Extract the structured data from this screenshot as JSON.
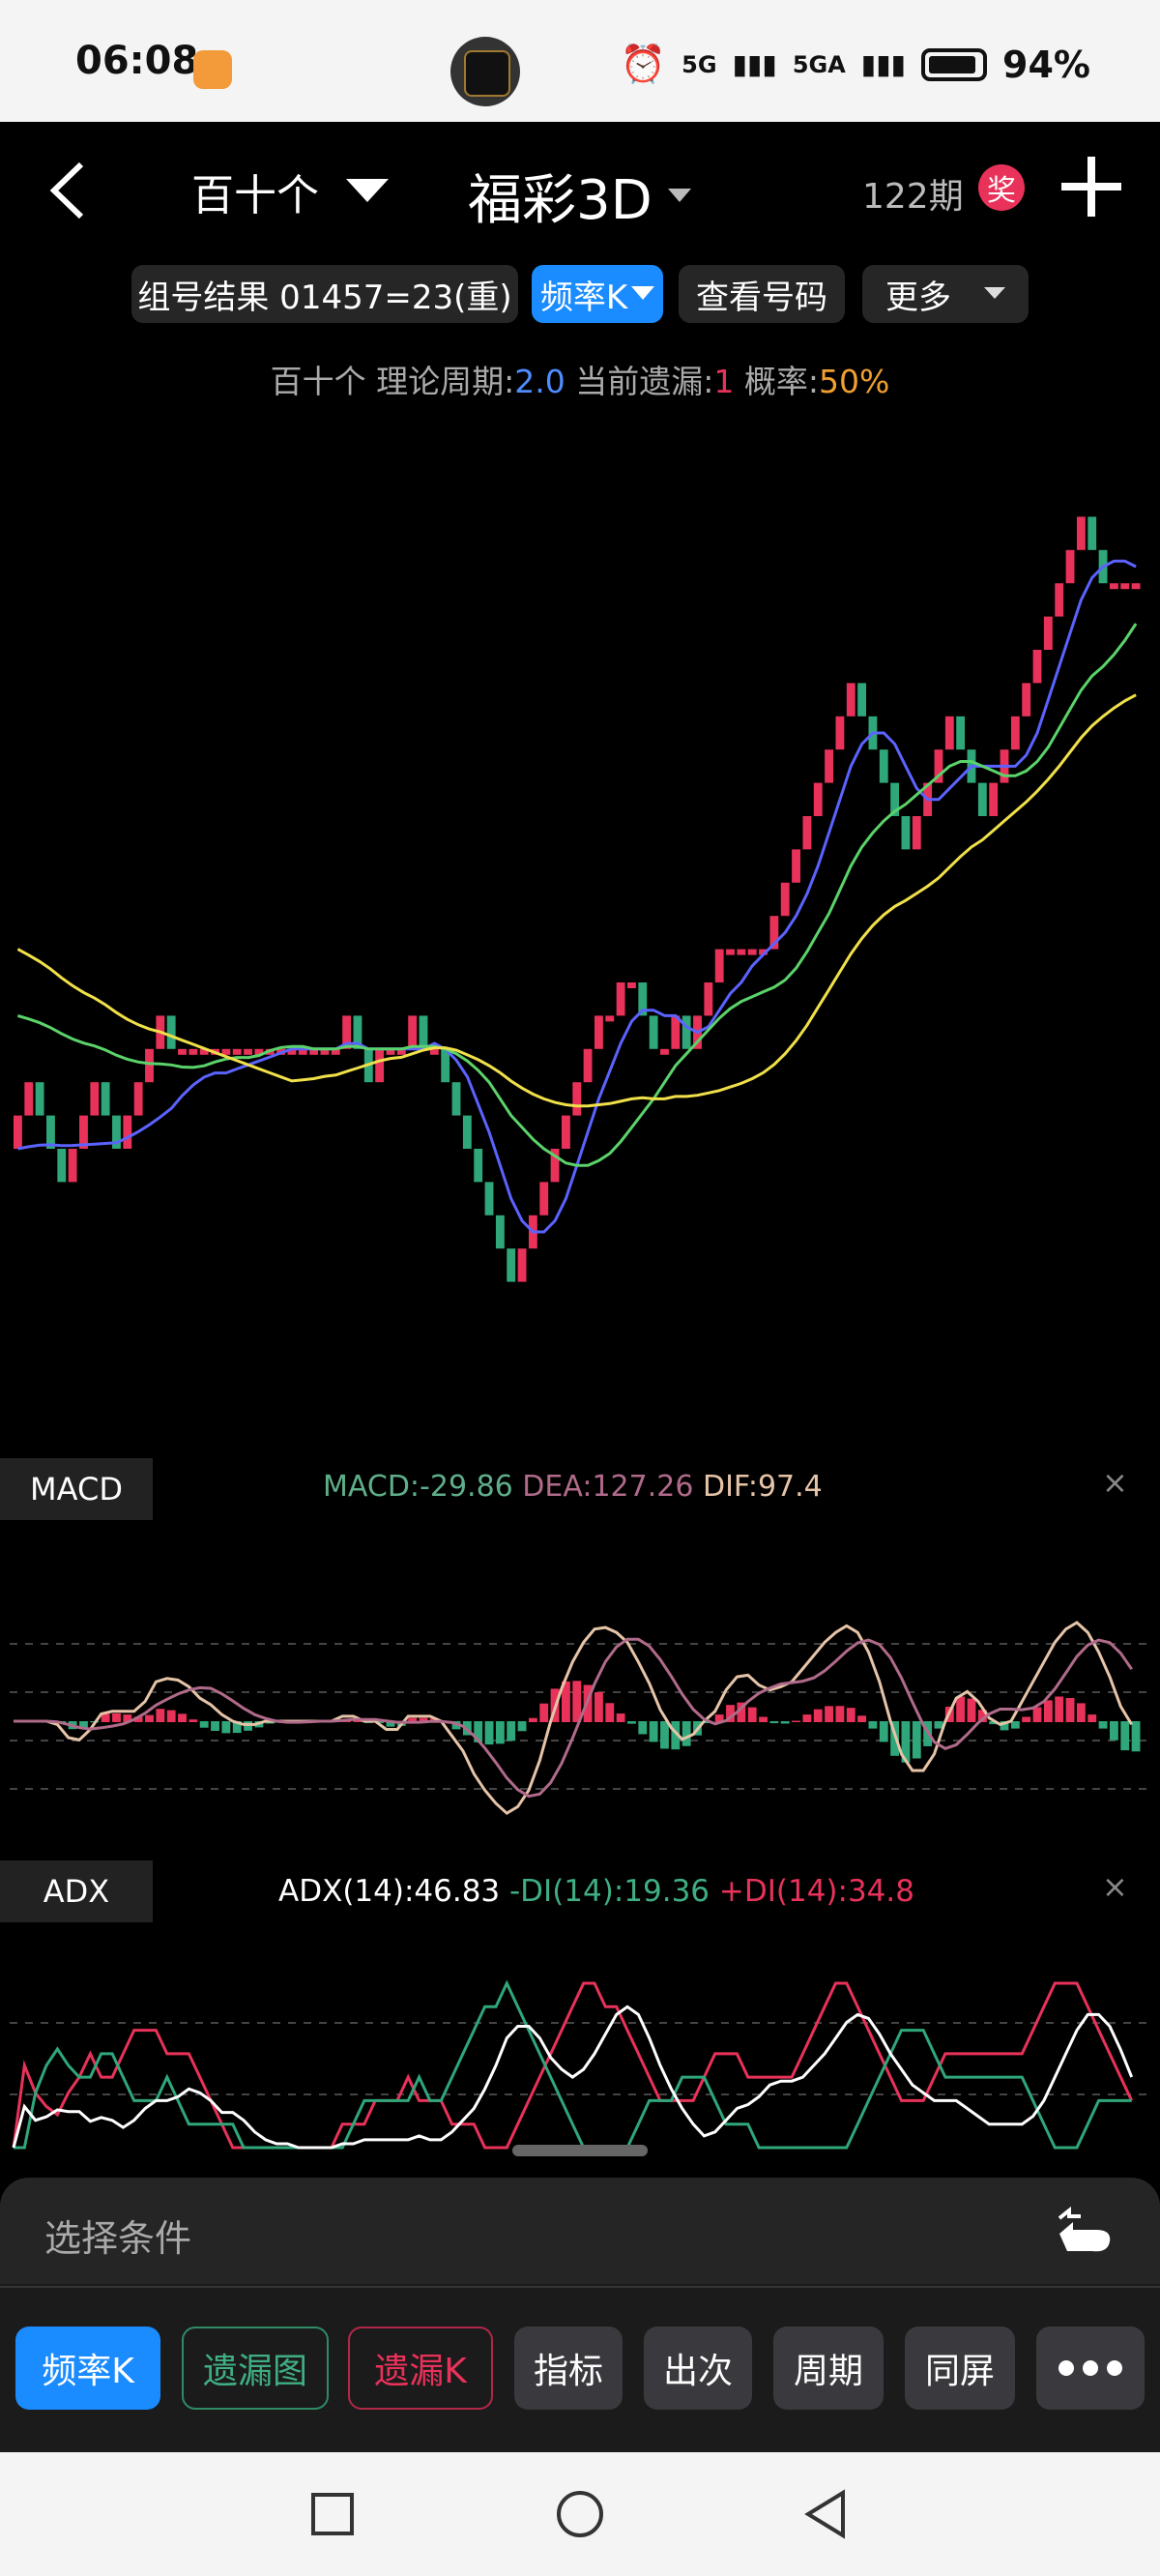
{
  "status_bar": {
    "time": "06:08",
    "network_1": "5G",
    "network_2": "5GA",
    "battery": "94%"
  },
  "header": {
    "back_icon": "chevron-left-icon",
    "position_select": "百十个",
    "lottery_title": "福彩3D",
    "period": "122期",
    "prize_badge": "奖",
    "add_icon": "plus-icon"
  },
  "toolbar": {
    "combo_result": "组号结果 01457=23(重)",
    "freq_k": "频率K",
    "view_numbers": "查看号码",
    "more": "更多"
  },
  "info": {
    "position": "百十个",
    "theory_label": "理论周期:",
    "theory_value": "2.0",
    "miss_label": "当前遗漏:",
    "miss_value": "1",
    "prob_label": "概率:",
    "prob_value": "50%"
  },
  "colors": {
    "up": "#e8325a",
    "down": "#2fa77a",
    "ma_blue": "#5b63ff",
    "ma_green": "#5bd36a",
    "ma_yellow": "#f0e04a",
    "accent_blue": "#1a8cff",
    "orange": "#f0a030"
  },
  "macd": {
    "tag": "MACD",
    "macd_label": "MACD:-29.86",
    "dea_label": "DEA:127.26",
    "dif_label": "DIF:97.4",
    "close": "×"
  },
  "adx": {
    "tag": "ADX",
    "adx_label": "ADX(14):46.83",
    "mdi_label": "-DI(14):19.36",
    "pdi_label": "+DI(14):34.8",
    "close": "×"
  },
  "sheet": {
    "filter_placeholder": "选择条件",
    "buttons": [
      "频率K",
      "遗漏图",
      "遗漏K",
      "指标",
      "出次",
      "周期",
      "同屏"
    ],
    "more_icon": "ellipsis-icon"
  },
  "chart_data": {
    "type": "candlestick",
    "closes": [
      0,
      1,
      0,
      -1,
      -2,
      -1,
      0,
      1,
      0,
      -1,
      0,
      1,
      2,
      3,
      2,
      2,
      2,
      2,
      2,
      2,
      2,
      2,
      2,
      2,
      2,
      2,
      2,
      2,
      2,
      2,
      3,
      2,
      1,
      2,
      2,
      2,
      3,
      2,
      2,
      1,
      0,
      -1,
      -2,
      -3,
      -4,
      -5,
      -4,
      -3,
      -2,
      -1,
      0,
      1,
      2,
      3,
      3,
      4,
      4,
      3,
      2,
      2,
      3,
      2,
      3,
      4,
      5,
      5,
      5,
      5,
      5,
      6,
      7,
      8,
      9,
      10,
      11,
      12,
      13,
      12,
      11,
      10,
      9,
      8,
      9,
      10,
      11,
      12,
      11,
      10,
      9,
      10,
      11,
      12,
      13,
      14,
      15,
      16,
      17,
      18,
      17,
      16,
      16,
      16,
      16
    ],
    "ma_short_label": "MA blue",
    "ma_mid_label": "MA green",
    "ma_long_label": "MA yellow"
  }
}
